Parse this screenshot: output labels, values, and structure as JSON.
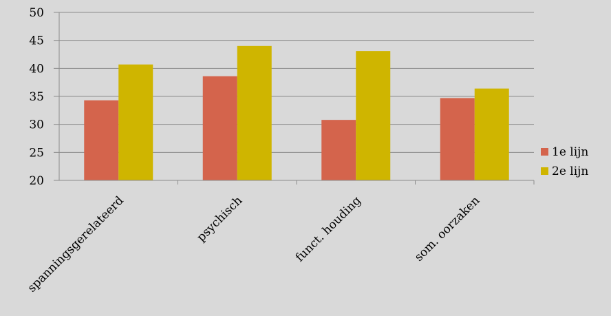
{
  "chart_data": {
    "type": "bar",
    "title": "",
    "xlabel": "",
    "ylabel": "",
    "categories": [
      "spanningsgerelateerd",
      "psychisch",
      "funct. houding",
      "som. oorzaken"
    ],
    "series": [
      {
        "name": "1e lijn",
        "values": [
          34.3,
          38.6,
          30.8,
          34.7
        ],
        "color": "#d4644c"
      },
      {
        "name": "2e lijn",
        "values": [
          40.7,
          44.0,
          43.1,
          36.4
        ],
        "color": "#cfb500"
      }
    ],
    "ylim": [
      20,
      50
    ],
    "yticks": [
      "20",
      "25",
      "30",
      "35",
      "40",
      "45",
      "50"
    ],
    "grid": true,
    "legend_position": "right"
  }
}
